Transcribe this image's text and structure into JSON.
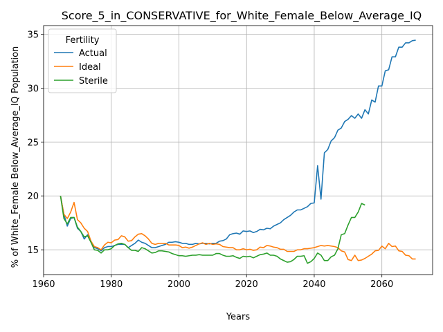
{
  "chart_data": {
    "type": "line",
    "title": "Score_5_in_CONSERVATIVE_for_White_Female_Below_Average_IQ",
    "xlabel": "Years",
    "ylabel": "% of White_Female Below_Average_IQ Population",
    "xlim": [
      1960,
      2075
    ],
    "ylim": [
      12.7,
      35.8
    ],
    "x_ticks": [
      1960,
      1980,
      2000,
      2020,
      2040,
      2060
    ],
    "y_ticks": [
      15,
      20,
      25,
      30,
      35
    ],
    "grid": true,
    "legend": {
      "title": "Fertility",
      "placement": "top-left"
    },
    "series": [
      {
        "name": "Actual",
        "color": "#1f77b4",
        "points": [
          [
            1965,
            20.0
          ],
          [
            1966,
            18.3
          ],
          [
            1967,
            17.2
          ],
          [
            1968,
            17.9
          ],
          [
            1969,
            18.0
          ],
          [
            1970,
            17.0
          ],
          [
            1971,
            16.7
          ],
          [
            1972,
            16.0
          ],
          [
            1973,
            16.4
          ],
          [
            1974,
            15.7
          ],
          [
            1975,
            15.2
          ],
          [
            1976,
            15.1
          ],
          [
            1977,
            14.9
          ],
          [
            1978,
            15.2
          ],
          [
            1979,
            15.3
          ],
          [
            1980,
            15.3
          ],
          [
            1981,
            15.4
          ],
          [
            1982,
            15.5
          ],
          [
            1983,
            15.5
          ],
          [
            1984,
            15.5
          ],
          [
            1985,
            15.2
          ],
          [
            1986,
            15.4
          ],
          [
            1987,
            15.6
          ],
          [
            1988,
            15.9
          ],
          [
            1989,
            15.7
          ],
          [
            1990,
            15.6
          ],
          [
            1991,
            15.4
          ],
          [
            1992,
            15.2
          ],
          [
            1993,
            15.2
          ],
          [
            1994,
            15.3
          ],
          [
            1995,
            15.4
          ],
          [
            1996,
            15.5
          ],
          [
            1997,
            15.7
          ],
          [
            1998,
            15.7
          ],
          [
            1999,
            15.75
          ],
          [
            2000,
            15.7
          ],
          [
            2001,
            15.6
          ],
          [
            2002,
            15.6
          ],
          [
            2003,
            15.5
          ],
          [
            2004,
            15.5
          ],
          [
            2005,
            15.6
          ],
          [
            2006,
            15.55
          ],
          [
            2007,
            15.6
          ],
          [
            2008,
            15.6
          ],
          [
            2009,
            15.55
          ],
          [
            2010,
            15.6
          ],
          [
            2011,
            15.6
          ],
          [
            2012,
            15.8
          ],
          [
            2013,
            15.85
          ],
          [
            2014,
            16.0
          ],
          [
            2015,
            16.4
          ],
          [
            2016,
            16.5
          ],
          [
            2017,
            16.55
          ],
          [
            2018,
            16.45
          ],
          [
            2019,
            16.75
          ],
          [
            2020,
            16.7
          ],
          [
            2021,
            16.75
          ],
          [
            2022,
            16.6
          ],
          [
            2023,
            16.7
          ],
          [
            2024,
            16.9
          ],
          [
            2025,
            16.85
          ],
          [
            2026,
            17.0
          ],
          [
            2027,
            16.95
          ],
          [
            2028,
            17.2
          ],
          [
            2029,
            17.35
          ],
          [
            2030,
            17.5
          ],
          [
            2031,
            17.8
          ],
          [
            2032,
            18.0
          ],
          [
            2033,
            18.2
          ],
          [
            2034,
            18.5
          ],
          [
            2035,
            18.7
          ],
          [
            2036,
            18.7
          ],
          [
            2037,
            18.85
          ],
          [
            2038,
            19.0
          ],
          [
            2039,
            19.3
          ],
          [
            2040,
            19.35
          ],
          [
            2041,
            22.8
          ],
          [
            2042,
            19.7
          ],
          [
            2043,
            24.0
          ],
          [
            2044,
            24.3
          ],
          [
            2045,
            25.1
          ],
          [
            2046,
            25.4
          ],
          [
            2047,
            26.1
          ],
          [
            2048,
            26.3
          ],
          [
            2049,
            26.9
          ],
          [
            2050,
            27.1
          ],
          [
            2051,
            27.45
          ],
          [
            2052,
            27.2
          ],
          [
            2053,
            27.6
          ],
          [
            2054,
            27.2
          ],
          [
            2055,
            28.0
          ],
          [
            2056,
            27.6
          ],
          [
            2057,
            28.9
          ],
          [
            2058,
            28.7
          ],
          [
            2059,
            30.2
          ],
          [
            2060,
            30.2
          ],
          [
            2061,
            31.6
          ],
          [
            2062,
            31.7
          ],
          [
            2063,
            32.9
          ],
          [
            2064,
            32.9
          ],
          [
            2065,
            33.8
          ],
          [
            2066,
            33.8
          ],
          [
            2067,
            34.2
          ],
          [
            2068,
            34.2
          ],
          [
            2069,
            34.4
          ],
          [
            2070,
            34.45
          ]
        ]
      },
      {
        "name": "Ideal",
        "color": "#ff7f0e",
        "points": [
          [
            1965,
            20.0
          ],
          [
            1966,
            18.3
          ],
          [
            1967,
            17.9
          ],
          [
            1968,
            18.5
          ],
          [
            1969,
            19.4
          ],
          [
            1970,
            17.8
          ],
          [
            1971,
            17.5
          ],
          [
            1972,
            17.0
          ],
          [
            1973,
            16.7
          ],
          [
            1974,
            15.8
          ],
          [
            1975,
            15.3
          ],
          [
            1976,
            15.2
          ],
          [
            1977,
            15.0
          ],
          [
            1978,
            15.45
          ],
          [
            1979,
            15.7
          ],
          [
            1980,
            15.65
          ],
          [
            1981,
            15.9
          ],
          [
            1982,
            15.95
          ],
          [
            1983,
            16.3
          ],
          [
            1984,
            16.2
          ],
          [
            1985,
            15.8
          ],
          [
            1986,
            15.85
          ],
          [
            1987,
            16.2
          ],
          [
            1988,
            16.45
          ],
          [
            1989,
            16.5
          ],
          [
            1990,
            16.3
          ],
          [
            1991,
            16.0
          ],
          [
            1992,
            15.6
          ],
          [
            1993,
            15.5
          ],
          [
            1994,
            15.6
          ],
          [
            1995,
            15.6
          ],
          [
            1996,
            15.6
          ],
          [
            1997,
            15.45
          ],
          [
            1998,
            15.45
          ],
          [
            1999,
            15.45
          ],
          [
            2000,
            15.4
          ],
          [
            2001,
            15.2
          ],
          [
            2002,
            15.25
          ],
          [
            2003,
            15.15
          ],
          [
            2004,
            15.25
          ],
          [
            2005,
            15.4
          ],
          [
            2006,
            15.55
          ],
          [
            2007,
            15.65
          ],
          [
            2008,
            15.5
          ],
          [
            2009,
            15.6
          ],
          [
            2010,
            15.5
          ],
          [
            2011,
            15.55
          ],
          [
            2012,
            15.5
          ],
          [
            2013,
            15.3
          ],
          [
            2014,
            15.25
          ],
          [
            2015,
            15.2
          ],
          [
            2016,
            15.2
          ],
          [
            2017,
            15.0
          ],
          [
            2018,
            15.0
          ],
          [
            2019,
            15.1
          ],
          [
            2020,
            15.0
          ],
          [
            2021,
            15.05
          ],
          [
            2022,
            14.95
          ],
          [
            2023,
            15.0
          ],
          [
            2024,
            15.25
          ],
          [
            2025,
            15.2
          ],
          [
            2026,
            15.4
          ],
          [
            2027,
            15.35
          ],
          [
            2028,
            15.25
          ],
          [
            2029,
            15.2
          ],
          [
            2030,
            15.05
          ],
          [
            2031,
            15.05
          ],
          [
            2032,
            14.85
          ],
          [
            2033,
            14.85
          ],
          [
            2034,
            14.85
          ],
          [
            2035,
            15.0
          ],
          [
            2036,
            15.0
          ],
          [
            2037,
            15.1
          ],
          [
            2038,
            15.1
          ],
          [
            2039,
            15.15
          ],
          [
            2040,
            15.2
          ],
          [
            2041,
            15.3
          ],
          [
            2042,
            15.4
          ],
          [
            2043,
            15.35
          ],
          [
            2044,
            15.4
          ],
          [
            2045,
            15.35
          ],
          [
            2046,
            15.3
          ],
          [
            2047,
            15.2
          ],
          [
            2048,
            14.9
          ],
          [
            2049,
            14.8
          ],
          [
            2050,
            14.1
          ],
          [
            2051,
            14.0
          ],
          [
            2052,
            14.5
          ],
          [
            2053,
            14.0
          ],
          [
            2054,
            14.05
          ],
          [
            2055,
            14.2
          ],
          [
            2056,
            14.4
          ],
          [
            2057,
            14.6
          ],
          [
            2058,
            14.9
          ],
          [
            2059,
            14.95
          ],
          [
            2060,
            15.35
          ],
          [
            2061,
            15.1
          ],
          [
            2062,
            15.6
          ],
          [
            2063,
            15.3
          ],
          [
            2064,
            15.35
          ],
          [
            2065,
            14.9
          ],
          [
            2066,
            14.85
          ],
          [
            2067,
            14.5
          ],
          [
            2068,
            14.45
          ],
          [
            2069,
            14.15
          ],
          [
            2070,
            14.15
          ]
        ]
      },
      {
        "name": "Sterile",
        "color": "#2ca02c",
        "points": [
          [
            1965,
            20.0
          ],
          [
            1966,
            17.9
          ],
          [
            1967,
            17.4
          ],
          [
            1968,
            18.0
          ],
          [
            1969,
            18.0
          ],
          [
            1970,
            17.1
          ],
          [
            1971,
            16.7
          ],
          [
            1972,
            16.2
          ],
          [
            1973,
            16.3
          ],
          [
            1974,
            15.7
          ],
          [
            1975,
            15.0
          ],
          [
            1976,
            14.95
          ],
          [
            1977,
            14.7
          ],
          [
            1978,
            15.0
          ],
          [
            1979,
            15.0
          ],
          [
            1980,
            15.1
          ],
          [
            1981,
            15.4
          ],
          [
            1982,
            15.55
          ],
          [
            1983,
            15.6
          ],
          [
            1984,
            15.5
          ],
          [
            1985,
            15.2
          ],
          [
            1986,
            14.95
          ],
          [
            1987,
            14.95
          ],
          [
            1988,
            14.85
          ],
          [
            1989,
            15.2
          ],
          [
            1990,
            15.1
          ],
          [
            1991,
            14.9
          ],
          [
            1992,
            14.7
          ],
          [
            1993,
            14.75
          ],
          [
            1994,
            14.9
          ],
          [
            1995,
            14.9
          ],
          [
            1996,
            14.85
          ],
          [
            1997,
            14.8
          ],
          [
            1998,
            14.65
          ],
          [
            1999,
            14.55
          ],
          [
            2000,
            14.45
          ],
          [
            2001,
            14.45
          ],
          [
            2002,
            14.4
          ],
          [
            2003,
            14.45
          ],
          [
            2004,
            14.5
          ],
          [
            2005,
            14.5
          ],
          [
            2006,
            14.55
          ],
          [
            2007,
            14.5
          ],
          [
            2008,
            14.5
          ],
          [
            2009,
            14.5
          ],
          [
            2010,
            14.5
          ],
          [
            2011,
            14.65
          ],
          [
            2012,
            14.65
          ],
          [
            2013,
            14.5
          ],
          [
            2014,
            14.4
          ],
          [
            2015,
            14.4
          ],
          [
            2016,
            14.45
          ],
          [
            2017,
            14.3
          ],
          [
            2018,
            14.2
          ],
          [
            2019,
            14.4
          ],
          [
            2020,
            14.35
          ],
          [
            2021,
            14.4
          ],
          [
            2022,
            14.25
          ],
          [
            2023,
            14.4
          ],
          [
            2024,
            14.55
          ],
          [
            2025,
            14.6
          ],
          [
            2026,
            14.7
          ],
          [
            2027,
            14.5
          ],
          [
            2028,
            14.5
          ],
          [
            2029,
            14.4
          ],
          [
            2030,
            14.15
          ],
          [
            2031,
            14.0
          ],
          [
            2032,
            13.85
          ],
          [
            2033,
            13.9
          ],
          [
            2034,
            14.1
          ],
          [
            2035,
            14.4
          ],
          [
            2036,
            14.4
          ],
          [
            2037,
            14.45
          ],
          [
            2038,
            13.75
          ],
          [
            2039,
            13.9
          ],
          [
            2040,
            14.2
          ],
          [
            2041,
            14.7
          ],
          [
            2042,
            14.5
          ],
          [
            2043,
            14.0
          ],
          [
            2044,
            14.0
          ],
          [
            2045,
            14.35
          ],
          [
            2046,
            14.5
          ],
          [
            2047,
            15.1
          ],
          [
            2048,
            16.4
          ],
          [
            2049,
            16.5
          ],
          [
            2050,
            17.3
          ],
          [
            2051,
            18.0
          ],
          [
            2052,
            18.0
          ],
          [
            2053,
            18.5
          ],
          [
            2054,
            19.3
          ],
          [
            2055,
            19.15
          ]
        ]
      }
    ]
  }
}
